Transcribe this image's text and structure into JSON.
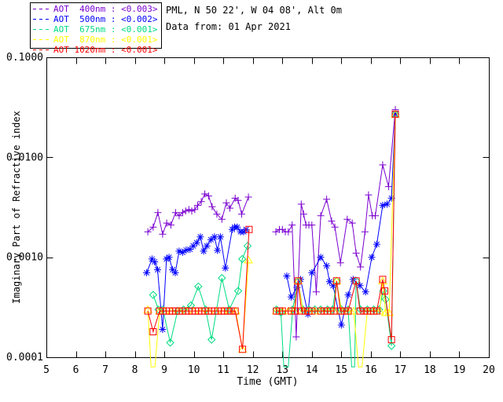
{
  "chart_data": {
    "type": "line",
    "annotations": [
      "PML, N 50 22', W 04 08', Alt 0m",
      "Data from: 01 Apr 2021"
    ],
    "xlabel": "Time (GMT)",
    "ylabel": "Imaginary Part of Refractive index",
    "x_axis": {
      "min": 5,
      "max": 20,
      "ticks": [
        5,
        6,
        7,
        8,
        9,
        10,
        11,
        12,
        13,
        14,
        15,
        16,
        17,
        18,
        19,
        20
      ]
    },
    "y_axis": {
      "scale": "log",
      "min": 0.0001,
      "max": 0.1,
      "ticks": [
        {
          "value": 0.1,
          "label": "0.1000"
        },
        {
          "value": 0.01,
          "label": "0.0100"
        },
        {
          "value": 0.001,
          "label": "0.0010"
        },
        {
          "value": 0.0001,
          "label": "0.0001"
        }
      ]
    },
    "legend": {
      "position": "top-left",
      "border": true
    },
    "series": [
      {
        "name": "AOT 400nm",
        "wavelength_nm": 400,
        "legend_label": "AOT  400nm : <0.003>",
        "color": "#7A00D0",
        "marker": "plus",
        "segments": [
          [
            [
              8.44,
              0.0018
            ],
            [
              8.62,
              0.002
            ],
            [
              8.78,
              0.0028
            ],
            [
              8.94,
              0.0017
            ],
            [
              9.08,
              0.0022
            ],
            [
              9.22,
              0.0021
            ],
            [
              9.38,
              0.0028
            ],
            [
              9.5,
              0.0026
            ],
            [
              9.62,
              0.0028
            ],
            [
              9.72,
              0.0029
            ],
            [
              9.83,
              0.003
            ],
            [
              9.93,
              0.0029
            ],
            [
              10.03,
              0.003
            ],
            [
              10.13,
              0.0033
            ],
            [
              10.25,
              0.0036
            ],
            [
              10.37,
              0.0043
            ],
            [
              10.5,
              0.0041
            ],
            [
              10.62,
              0.0032
            ],
            [
              10.78,
              0.0027
            ],
            [
              10.95,
              0.0024
            ],
            [
              11.1,
              0.0035
            ],
            [
              11.22,
              0.0031
            ],
            [
              11.4,
              0.0039
            ],
            [
              11.5,
              0.0037
            ],
            [
              11.62,
              0.0027
            ],
            [
              11.85,
              0.004
            ]
          ],
          [
            [
              12.78,
              0.0018
            ],
            [
              12.9,
              0.0019
            ],
            [
              13.0,
              0.0019
            ],
            [
              13.1,
              0.0018
            ],
            [
              13.2,
              0.0018
            ],
            [
              13.33,
              0.0021
            ],
            [
              13.47,
              0.00016
            ],
            [
              13.64,
              0.0034
            ],
            [
              13.72,
              0.0027
            ],
            [
              13.8,
              0.0021
            ],
            [
              13.9,
              0.0021
            ],
            [
              14.0,
              0.0021
            ],
            [
              14.15,
              0.00045
            ],
            [
              14.3,
              0.0026
            ],
            [
              14.5,
              0.0038
            ],
            [
              14.67,
              0.0023
            ],
            [
              14.78,
              0.002
            ],
            [
              14.97,
              0.00088
            ],
            [
              15.2,
              0.0024
            ],
            [
              15.37,
              0.0022
            ],
            [
              15.5,
              0.0011
            ],
            [
              15.65,
              0.0008
            ],
            [
              15.8,
              0.0018
            ],
            [
              15.92,
              0.0042
            ],
            [
              16.05,
              0.0026
            ],
            [
              16.15,
              0.0026
            ],
            [
              16.4,
              0.0084
            ],
            [
              16.6,
              0.0051
            ],
            [
              16.83,
              0.03
            ]
          ]
        ]
      },
      {
        "name": "AOT 500nm",
        "wavelength_nm": 500,
        "legend_label": "AOT  500nm : <0.002>",
        "color": "#0000FF",
        "marker": "asterisk",
        "segments": [
          [
            [
              8.4,
              0.0007
            ],
            [
              8.58,
              0.00096
            ],
            [
              8.67,
              0.0009
            ],
            [
              8.77,
              0.00075
            ],
            [
              8.94,
              0.00019
            ],
            [
              9.07,
              0.00096
            ],
            [
              9.16,
              0.001
            ],
            [
              9.28,
              0.00075
            ],
            [
              9.37,
              0.0007
            ],
            [
              9.5,
              0.00115
            ],
            [
              9.62,
              0.00112
            ],
            [
              9.74,
              0.00118
            ],
            [
              9.87,
              0.0012
            ],
            [
              9.98,
              0.0013
            ],
            [
              10.1,
              0.0014
            ],
            [
              10.22,
              0.0016
            ],
            [
              10.33,
              0.00115
            ],
            [
              10.44,
              0.0013
            ],
            [
              10.58,
              0.0015
            ],
            [
              10.7,
              0.0016
            ],
            [
              10.8,
              0.00117
            ],
            [
              10.9,
              0.0016
            ],
            [
              11.07,
              0.00078
            ],
            [
              11.3,
              0.0019
            ],
            [
              11.38,
              0.002
            ],
            [
              11.47,
              0.002
            ],
            [
              11.58,
              0.0018
            ],
            [
              11.69,
              0.0018
            ],
            [
              11.77,
              0.0019
            ]
          ],
          [
            [
              13.15,
              0.00065
            ],
            [
              13.3,
              0.0004
            ],
            [
              13.5,
              0.0005
            ],
            [
              13.62,
              0.0006
            ],
            [
              13.87,
              0.00027
            ],
            [
              14.0,
              0.0007
            ],
            [
              14.3,
              0.001
            ],
            [
              14.5,
              0.00082
            ],
            [
              14.6,
              0.00057
            ],
            [
              14.72,
              0.00052
            ],
            [
              15.0,
              0.00021
            ],
            [
              15.23,
              0.00042
            ],
            [
              15.4,
              0.0006
            ],
            [
              15.63,
              0.00052
            ],
            [
              15.82,
              0.00045
            ],
            [
              16.03,
              0.001
            ],
            [
              16.2,
              0.00135
            ],
            [
              16.4,
              0.0033
            ],
            [
              16.55,
              0.0034
            ],
            [
              16.7,
              0.0039
            ],
            [
              16.83,
              0.027
            ]
          ]
        ]
      },
      {
        "name": "AOT 675nm",
        "wavelength_nm": 675,
        "legend_label": "AOT  675nm : <0.001>",
        "color": "#00DC82",
        "marker": "diamond",
        "segments": [
          [
            [
              8.62,
              0.00042
            ],
            [
              8.8,
              0.0003
            ],
            [
              8.95,
              0.0003
            ],
            [
              9.2,
              0.00014
            ],
            [
              9.45,
              0.00029
            ],
            [
              9.65,
              0.0003
            ],
            [
              9.9,
              0.00033
            ],
            [
              10.15,
              0.00051
            ],
            [
              10.4,
              0.0003
            ],
            [
              10.6,
              0.00015
            ],
            [
              10.95,
              0.00062
            ],
            [
              11.2,
              0.0003
            ],
            [
              11.5,
              0.00046
            ],
            [
              11.64,
              0.00096
            ],
            [
              11.82,
              0.0013
            ]
          ],
          [
            [
              12.8,
              0.0003
            ],
            [
              12.95,
              0.00028
            ],
            [
              13.05,
              8e-05
            ],
            [
              13.2,
              8e-05
            ],
            [
              13.35,
              0.0003
            ],
            [
              13.53,
              0.00058
            ],
            [
              13.7,
              0.0003
            ],
            [
              13.9,
              0.0003
            ],
            [
              14.1,
              0.0003
            ],
            [
              14.3,
              0.0003
            ],
            [
              14.53,
              0.0003
            ],
            [
              14.7,
              0.0003
            ],
            [
              14.84,
              0.00058
            ],
            [
              15.0,
              0.0003
            ],
            [
              15.23,
              0.0003
            ],
            [
              15.35,
              8e-05
            ],
            [
              15.45,
              8e-05
            ],
            [
              15.5,
              0.00058
            ],
            [
              15.65,
              0.0003
            ],
            [
              15.88,
              0.0003
            ],
            [
              16.1,
              0.0003
            ],
            [
              16.28,
              0.0003
            ],
            [
              16.42,
              0.00046
            ],
            [
              16.5,
              0.00038
            ],
            [
              16.7,
              0.00013
            ],
            [
              16.83,
              0.027
            ]
          ]
        ]
      },
      {
        "name": "AOT 870nm",
        "wavelength_nm": 870,
        "legend_label": "AOT  870nm : <0.001>",
        "color": "#FFFF00",
        "marker": "triangle",
        "segments": [
          [
            [
              8.44,
              0.0003
            ],
            [
              8.55,
              8e-05
            ],
            [
              8.68,
              8e-05
            ],
            [
              8.84,
              0.00029
            ],
            [
              9.0,
              0.00029
            ],
            [
              9.25,
              0.00029
            ],
            [
              9.5,
              0.00029
            ],
            [
              9.75,
              0.00029
            ],
            [
              10.0,
              0.00029
            ],
            [
              10.25,
              0.00029
            ],
            [
              10.5,
              0.00029
            ],
            [
              10.75,
              0.00029
            ],
            [
              11.0,
              0.00029
            ],
            [
              11.2,
              0.00029
            ],
            [
              11.42,
              0.00029
            ],
            [
              11.65,
              0.00012
            ],
            [
              11.85,
              0.00094
            ]
          ],
          [
            [
              12.8,
              0.00029
            ],
            [
              13.0,
              0.00029
            ],
            [
              13.2,
              0.00029
            ],
            [
              13.4,
              0.00029
            ],
            [
              13.53,
              0.00058
            ],
            [
              13.7,
              0.00029
            ],
            [
              13.9,
              0.00029
            ],
            [
              14.1,
              0.00029
            ],
            [
              14.3,
              0.00029
            ],
            [
              14.53,
              0.00029
            ],
            [
              14.75,
              0.00029
            ],
            [
              14.84,
              0.00058
            ],
            [
              15.0,
              0.00029
            ],
            [
              15.23,
              0.00029
            ],
            [
              15.42,
              0.00029
            ],
            [
              15.58,
              8e-05
            ],
            [
              15.7,
              8e-05
            ],
            [
              15.88,
              0.00029
            ],
            [
              16.1,
              0.00029
            ],
            [
              16.3,
              0.00029
            ],
            [
              16.4,
              0.00058
            ],
            [
              16.5,
              0.00028
            ],
            [
              16.62,
              0.00028
            ],
            [
              16.83,
              0.027
            ]
          ]
        ]
      },
      {
        "name": "AOT 1020nm",
        "wavelength_nm": 1020,
        "legend_label": "AOT 1020nm : <0.001>",
        "color": "#FF0000",
        "marker": "square",
        "segments": [
          [
            [
              8.44,
              0.00029
            ],
            [
              8.62,
              0.00018
            ],
            [
              8.84,
              0.00029
            ],
            [
              8.95,
              0.00029
            ],
            [
              9.06,
              0.00029
            ],
            [
              9.17,
              0.00029
            ],
            [
              9.28,
              0.00029
            ],
            [
              9.39,
              0.00029
            ],
            [
              9.5,
              0.00029
            ],
            [
              9.61,
              0.00029
            ],
            [
              9.72,
              0.00029
            ],
            [
              9.83,
              0.00029
            ],
            [
              9.94,
              0.00029
            ],
            [
              10.05,
              0.00029
            ],
            [
              10.16,
              0.00029
            ],
            [
              10.27,
              0.00029
            ],
            [
              10.38,
              0.00029
            ],
            [
              10.49,
              0.00029
            ],
            [
              10.6,
              0.00029
            ],
            [
              10.71,
              0.00029
            ],
            [
              10.82,
              0.00029
            ],
            [
              10.93,
              0.00029
            ],
            [
              11.04,
              0.00029
            ],
            [
              11.15,
              0.00029
            ],
            [
              11.26,
              0.00029
            ],
            [
              11.4,
              0.00029
            ],
            [
              11.65,
              0.00012
            ],
            [
              11.87,
              0.0019
            ]
          ],
          [
            [
              12.8,
              0.00029
            ],
            [
              12.9,
              0.00029
            ],
            [
              13.0,
              0.00029
            ],
            [
              13.3,
              0.00029
            ],
            [
              13.42,
              0.00029
            ],
            [
              13.53,
              0.00058
            ],
            [
              13.65,
              0.00029
            ],
            [
              13.78,
              0.00029
            ],
            [
              13.9,
              0.00029
            ],
            [
              14.0,
              0.00029
            ],
            [
              14.3,
              0.00029
            ],
            [
              14.42,
              0.00029
            ],
            [
              14.53,
              0.00029
            ],
            [
              14.64,
              0.00029
            ],
            [
              14.75,
              0.00029
            ],
            [
              14.84,
              0.00058
            ],
            [
              14.97,
              0.00029
            ],
            [
              15.1,
              0.00029
            ],
            [
              15.23,
              0.00029
            ],
            [
              15.5,
              0.00058
            ],
            [
              15.63,
              0.00029
            ],
            [
              15.77,
              0.00029
            ],
            [
              15.88,
              0.00029
            ],
            [
              16.0,
              0.00029
            ],
            [
              16.1,
              0.00029
            ],
            [
              16.2,
              0.00029
            ],
            [
              16.4,
              0.0006
            ],
            [
              16.47,
              0.00046
            ],
            [
              16.7,
              0.00015
            ],
            [
              16.83,
              0.027
            ]
          ]
        ]
      }
    ]
  }
}
